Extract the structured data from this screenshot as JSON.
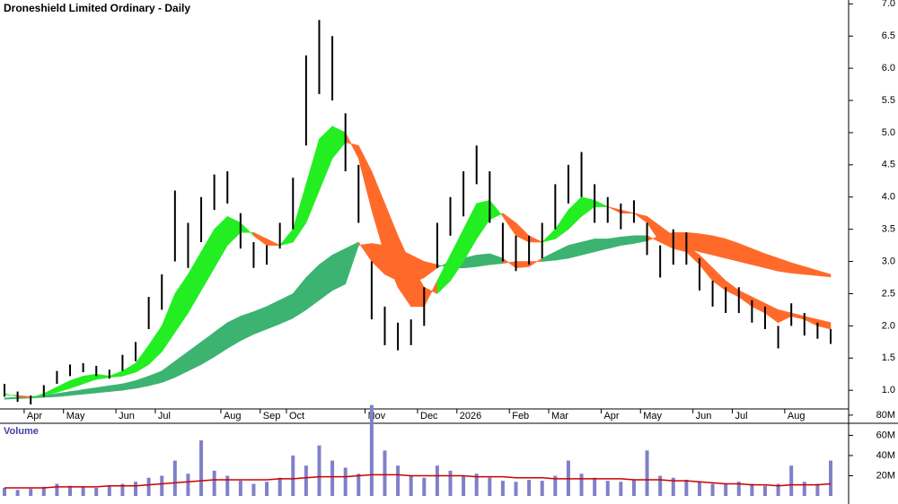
{
  "chart_data": [
    {
      "type": "hilo",
      "title": "Droneshield Limited Ordinary - Daily",
      "categories": [
        null,
        null,
        "Apr",
        null,
        null,
        "May",
        null,
        null,
        null,
        "Jun",
        null,
        null,
        "Jul",
        null,
        null,
        null,
        null,
        "Aug",
        null,
        null,
        "Sep",
        null,
        "Oct",
        null,
        null,
        null,
        null,
        null,
        "Nov",
        null,
        null,
        null,
        "Dec",
        null,
        null,
        "2026",
        null,
        null,
        null,
        "Feb",
        null,
        null,
        "Mar",
        null,
        null,
        null,
        "Apr",
        null,
        null,
        "May",
        null,
        null,
        null,
        "Jun",
        null,
        null,
        "Jul",
        null,
        null,
        null,
        "Aug",
        null,
        null,
        null
      ],
      "high": [
        1.1,
        0.98,
        0.92,
        1.08,
        1.3,
        1.4,
        1.42,
        1.38,
        1.32,
        1.55,
        1.75,
        2.45,
        2.8,
        4.1,
        3.6,
        4.0,
        4.35,
        4.4,
        3.75,
        3.3,
        3.25,
        3.6,
        4.3,
        6.2,
        6.75,
        6.5,
        5.3,
        4.5,
        3.0,
        2.3,
        2.05,
        2.1,
        2.6,
        3.6,
        4.0,
        4.4,
        4.8,
        4.4,
        3.6,
        3.4,
        3.4,
        3.6,
        4.2,
        4.5,
        4.7,
        4.2,
        4.0,
        3.9,
        3.95,
        3.6,
        3.25,
        3.5,
        3.45,
        3.05,
        2.7,
        2.6,
        2.6,
        2.4,
        2.3,
        2.0,
        2.35,
        2.2,
        2.05,
        1.95
      ],
      "low": [
        0.9,
        0.82,
        0.78,
        0.9,
        1.1,
        1.22,
        1.28,
        1.22,
        1.18,
        1.3,
        1.45,
        1.95,
        2.25,
        3.0,
        2.9,
        3.3,
        3.8,
        3.9,
        3.2,
        2.9,
        2.95,
        3.2,
        3.5,
        4.8,
        5.6,
        5.5,
        4.4,
        3.6,
        2.1,
        1.7,
        1.62,
        1.7,
        2.0,
        2.9,
        3.4,
        3.7,
        4.2,
        3.6,
        3.0,
        2.85,
        2.95,
        3.05,
        3.5,
        3.9,
        4.0,
        3.6,
        3.6,
        3.5,
        3.6,
        3.1,
        2.75,
        2.95,
        2.95,
        2.55,
        2.3,
        2.2,
        2.2,
        2.05,
        1.95,
        1.65,
        2.0,
        1.85,
        1.8,
        1.72
      ],
      "bar_color": "#000000",
      "ribbons": [
        {
          "fast": [
            0.88,
            0.89,
            0.9,
            0.92,
            0.95,
            0.98,
            1.01,
            1.04,
            1.07,
            1.1,
            1.15,
            1.22,
            1.3,
            1.45,
            1.6,
            1.75,
            1.9,
            2.05,
            2.15,
            2.22,
            2.3,
            2.4,
            2.5,
            2.75,
            2.95,
            3.1,
            3.2,
            3.3,
            3.0,
            2.8,
            2.7,
            2.65,
            2.75,
            2.9,
            3.0,
            3.05,
            3.1,
            3.12,
            3.05,
            2.9,
            2.92,
            3.05,
            3.15,
            3.25,
            3.3,
            3.35,
            3.35,
            3.38,
            3.4,
            3.4,
            3.3,
            3.25,
            3.2,
            3.15,
            3.1,
            3.05,
            3.0,
            2.95,
            2.9,
            2.85,
            2.82,
            2.8,
            2.78,
            2.76
          ],
          "slow": [
            0.86,
            0.87,
            0.88,
            0.89,
            0.9,
            0.92,
            0.94,
            0.96,
            0.98,
            1.0,
            1.03,
            1.07,
            1.12,
            1.2,
            1.3,
            1.4,
            1.52,
            1.65,
            1.77,
            1.87,
            1.95,
            2.03,
            2.12,
            2.25,
            2.4,
            2.55,
            2.65,
            3.25,
            3.28,
            3.25,
            3.2,
            3.1,
            3.0,
            2.95,
            2.9,
            2.9,
            2.92,
            2.95,
            2.97,
            3.0,
            3.0,
            3.0,
            3.02,
            3.05,
            3.1,
            3.15,
            3.2,
            3.25,
            3.28,
            3.32,
            3.4,
            3.45,
            3.45,
            3.43,
            3.4,
            3.35,
            3.28,
            3.2,
            3.12,
            3.05,
            2.98,
            2.92,
            2.86,
            2.8
          ],
          "up_color": "#3cb371",
          "down_color": "#ff6a2a"
        },
        {
          "fast": [
            0.95,
            0.9,
            0.88,
            0.95,
            1.05,
            1.15,
            1.22,
            1.25,
            1.22,
            1.3,
            1.42,
            1.7,
            2.0,
            2.5,
            2.8,
            3.15,
            3.5,
            3.7,
            3.6,
            3.4,
            3.25,
            3.25,
            3.5,
            4.2,
            4.9,
            5.1,
            5.0,
            4.6,
            3.8,
            3.1,
            2.6,
            2.3,
            2.3,
            2.7,
            3.1,
            3.5,
            3.9,
            3.95,
            3.7,
            3.4,
            3.3,
            3.3,
            3.5,
            3.8,
            4.0,
            3.95,
            3.85,
            3.75,
            3.75,
            3.6,
            3.3,
            3.2,
            3.15,
            2.95,
            2.7,
            2.55,
            2.45,
            2.3,
            2.2,
            2.05,
            2.15,
            2.1,
            2.0,
            1.95
          ],
          "slow": [
            0.93,
            0.92,
            0.9,
            0.92,
            0.97,
            1.03,
            1.1,
            1.17,
            1.2,
            1.22,
            1.28,
            1.4,
            1.6,
            1.9,
            2.2,
            2.55,
            2.9,
            3.25,
            3.45,
            3.45,
            3.35,
            3.25,
            3.3,
            3.6,
            4.1,
            4.6,
            4.85,
            4.8,
            4.4,
            3.9,
            3.4,
            2.95,
            2.6,
            2.5,
            2.7,
            3.0,
            3.35,
            3.65,
            3.75,
            3.6,
            3.4,
            3.3,
            3.35,
            3.5,
            3.7,
            3.85,
            3.85,
            3.8,
            3.75,
            3.7,
            3.55,
            3.4,
            3.25,
            3.1,
            2.9,
            2.7,
            2.55,
            2.45,
            2.35,
            2.25,
            2.2,
            2.15,
            2.1,
            2.05
          ],
          "up_color": "#22ee22",
          "down_color": "#ff6a2a"
        }
      ],
      "ylim": [
        0.71,
        7.06
      ],
      "yticks": [
        {
          "value": 1,
          "label": "1.0"
        },
        1.5,
        {
          "value": 2,
          "label": "2.0"
        },
        2.5,
        {
          "value": 3,
          "label": "3.0"
        },
        3.5,
        {
          "value": 4,
          "label": "4.0"
        },
        4.5,
        {
          "value": 5,
          "label": "5.0"
        },
        5.5,
        {
          "value": 6,
          "label": "6.0"
        },
        6.5,
        {
          "value": 7,
          "label": "7.0"
        }
      ]
    },
    {
      "type": "bar",
      "title": "Volume",
      "values": [
        8,
        6,
        7,
        9,
        12,
        10,
        9,
        8,
        10,
        12,
        14,
        18,
        20,
        35,
        22,
        55,
        25,
        20,
        15,
        12,
        14,
        18,
        40,
        30,
        50,
        35,
        28,
        22,
        90,
        45,
        30,
        20,
        18,
        30,
        25,
        20,
        22,
        18,
        15,
        14,
        16,
        15,
        20,
        35,
        22,
        18,
        15,
        14,
        16,
        45,
        20,
        18,
        16,
        14,
        12,
        12,
        14,
        12,
        10,
        12,
        30,
        14,
        12,
        35
      ],
      "color": "#8080c8",
      "average": [
        8,
        8,
        8,
        8,
        9,
        9,
        9,
        9,
        10,
        10,
        10,
        11,
        12,
        13,
        14,
        15,
        16,
        16,
        16,
        16,
        16,
        17,
        17,
        18,
        19,
        19,
        19,
        20,
        21,
        21,
        21,
        20,
        20,
        20,
        20,
        20,
        19,
        19,
        19,
        18,
        18,
        18,
        17,
        17,
        17,
        17,
        17,
        17,
        16,
        16,
        16,
        15,
        15,
        14,
        13,
        12,
        12,
        11,
        11,
        10,
        11,
        11,
        11,
        12
      ],
      "average_color": "#cc0000",
      "ylim": [
        0,
        87
      ],
      "yticks": [
        {
          "value": 20,
          "label": "20M"
        },
        {
          "value": 40,
          "label": "40M"
        },
        {
          "value": 60,
          "label": "60M"
        },
        {
          "value": 80,
          "label": "80M"
        }
      ]
    }
  ]
}
